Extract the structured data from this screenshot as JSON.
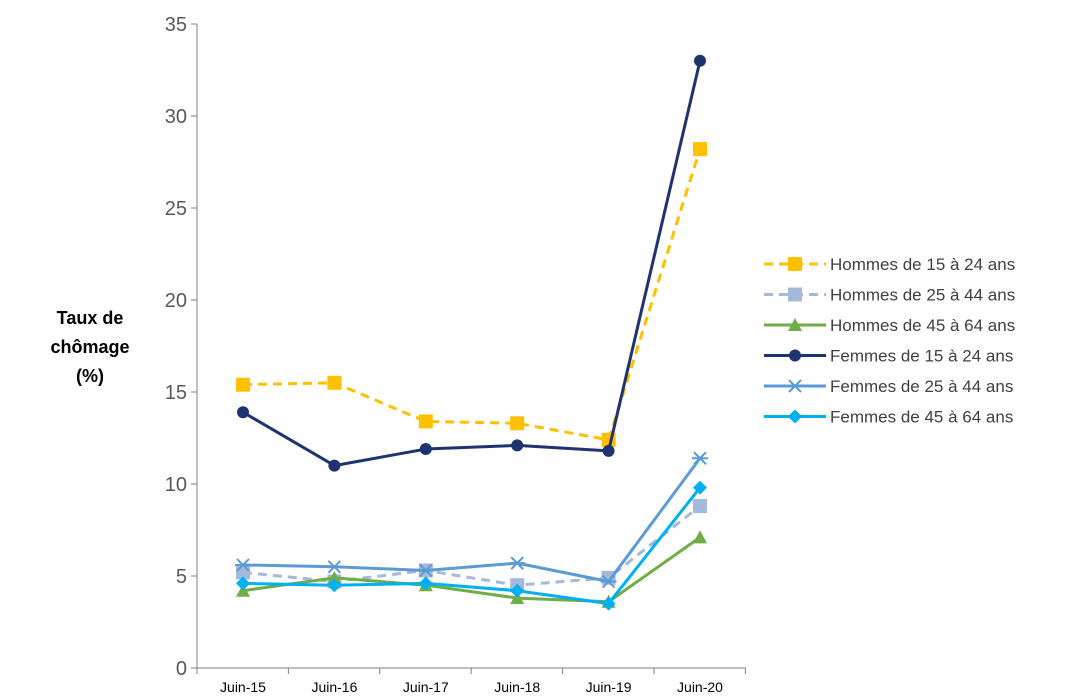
{
  "chart_data": {
    "type": "line",
    "categories": [
      "Juin-15",
      "Juin-16",
      "Juin-17",
      "Juin-18",
      "Juin-19",
      "Juin-20"
    ],
    "ylabel_lines": [
      "Taux de",
      "chômage",
      "(%)"
    ],
    "ylim": [
      0,
      35
    ],
    "yticks": [
      "0",
      "5",
      "10",
      "15",
      "20",
      "25",
      "30",
      "35"
    ],
    "grid": false,
    "legend_position": "right",
    "series": [
      {
        "name": "Hommes de 15 à 24 ans",
        "values": [
          15.4,
          15.5,
          13.4,
          13.3,
          12.4,
          28.2
        ],
        "color": "#FFC000",
        "dash": "dashed",
        "marker": "square"
      },
      {
        "name": "Hommes de 25 à 44 ans",
        "values": [
          5.2,
          4.7,
          5.3,
          4.5,
          4.9,
          8.8
        ],
        "color": "#A5B9DC",
        "dash": "dashed",
        "marker": "square"
      },
      {
        "name": "Hommes de 45 à 64 ans",
        "values": [
          4.2,
          4.9,
          4.5,
          3.8,
          3.6,
          7.1
        ],
        "color": "#70AD47",
        "dash": "solid",
        "marker": "triangle"
      },
      {
        "name": "Femmes de 15 à 24 ans",
        "values": [
          13.9,
          11.0,
          11.9,
          12.1,
          11.8,
          33.0
        ],
        "color": "#1F3370",
        "dash": "solid",
        "marker": "circle"
      },
      {
        "name": "Femmes de 25 à 44 ans",
        "values": [
          5.6,
          5.5,
          5.3,
          5.7,
          4.7,
          11.4
        ],
        "color": "#5B9BD5",
        "dash": "solid",
        "marker": "asterisk"
      },
      {
        "name": "Femmes de 45 à 64 ans",
        "values": [
          4.6,
          4.5,
          4.6,
          4.2,
          3.5,
          9.8
        ],
        "color": "#00B0F0",
        "dash": "solid",
        "marker": "diamond"
      }
    ]
  }
}
